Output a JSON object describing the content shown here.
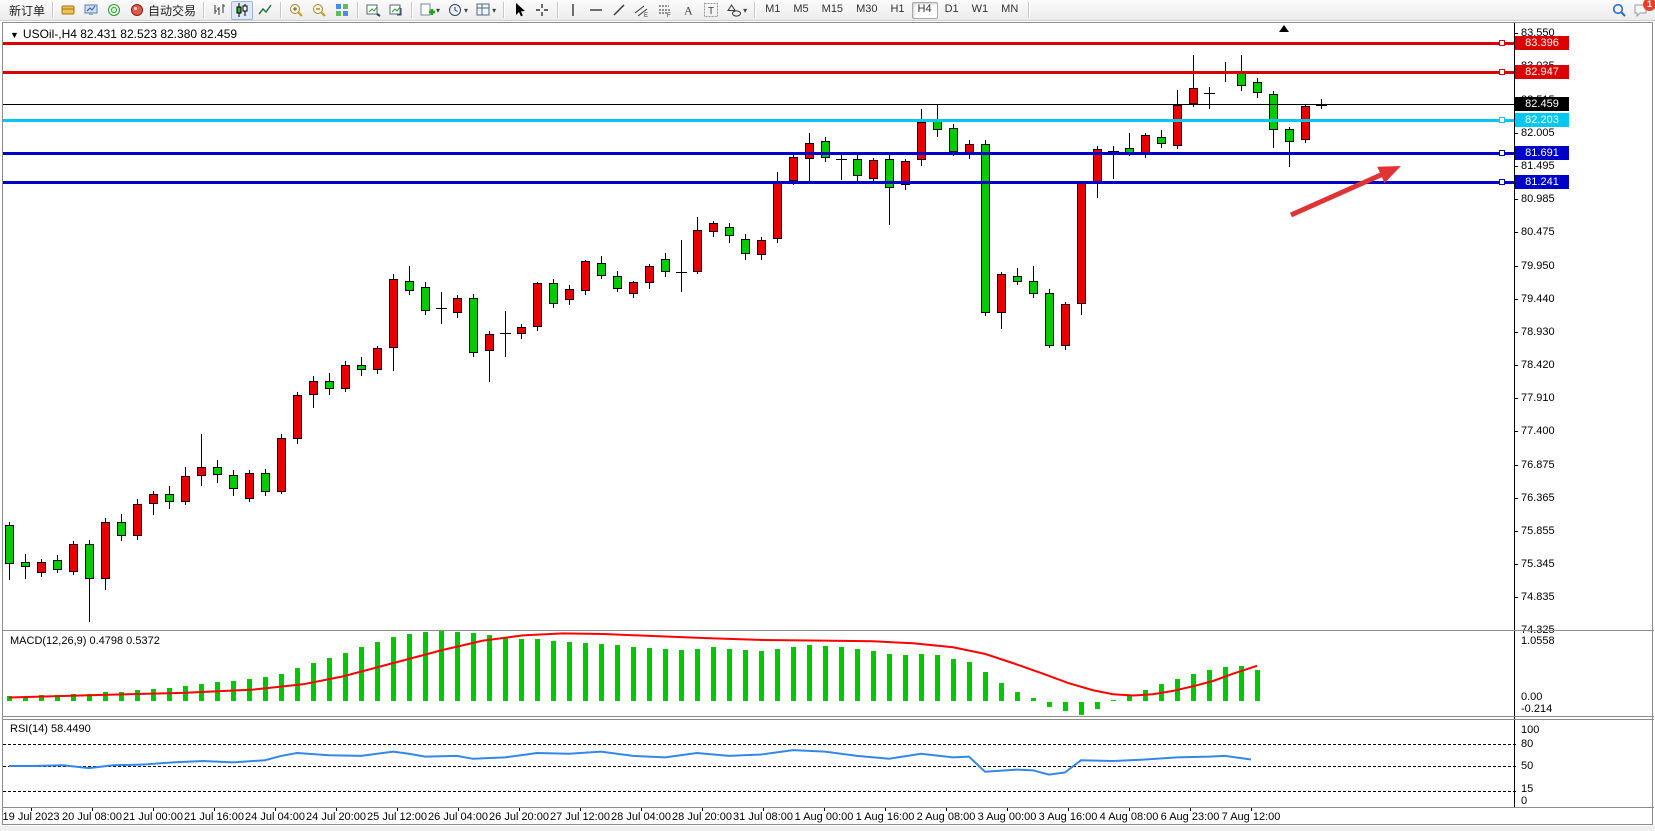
{
  "toolbar": {
    "new_order_label": "新订单",
    "auto_trading_label": "自动交易",
    "timeframes": [
      "M1",
      "M5",
      "M15",
      "M30",
      "H1",
      "H4",
      "D1",
      "W1",
      "MN"
    ],
    "active_timeframe": "H4",
    "notification_count": "1",
    "icon_buttons": [
      "profiles",
      "market-watch",
      "data-window",
      "auto-trading",
      "chart-bars",
      "chart-candles",
      "chart-line",
      "zoom-in",
      "zoom-out",
      "tile-windows",
      "arrange-auto",
      "arrange-cascade",
      "new-chart",
      "clock",
      "template",
      "cursor",
      "crosshair",
      "vline",
      "hline",
      "tline",
      "channel",
      "fibo",
      "text-a",
      "text-t",
      "shapes",
      "search",
      "chat"
    ]
  },
  "chart": {
    "title": "USOil-,H4  82.431 82.523 82.380 82.459",
    "current_price": "82.459",
    "colors": {
      "up_candle": "#e60000",
      "down_candle": "#00cc00",
      "red_line": "#dd0000",
      "cyan_line": "#00c8f0",
      "blue_line": "#0000c8",
      "black_line": "#000000",
      "macd_histogram": "#00c800",
      "macd_signal": "#ff0000",
      "rsi_line": "#3388e6",
      "arrow": "#e03434"
    },
    "hlines": [
      {
        "price": 83.396,
        "label": "83.396",
        "color": "#dd0000",
        "thick": 3
      },
      {
        "price": 82.947,
        "label": "82.947",
        "color": "#dd0000",
        "thick": 3
      },
      {
        "price": 82.459,
        "label": "82.459",
        "color": "#000000",
        "thick": 1
      },
      {
        "price": 82.203,
        "label": "82.203",
        "color": "#00c8f0",
        "thick": 3
      },
      {
        "price": 81.691,
        "label": "81.691",
        "color": "#0000c8",
        "thick": 3
      },
      {
        "price": 81.241,
        "label": "81.241",
        "color": "#0000c8",
        "thick": 3
      }
    ],
    "y_ticks": [
      "83.550",
      "83.035",
      "82.515",
      "82.005",
      "81.495",
      "80.985",
      "80.475",
      "79.950",
      "79.440",
      "78.930",
      "78.420",
      "77.910",
      "77.400",
      "76.875",
      "76.365",
      "75.855",
      "75.345",
      "74.835",
      "74.325"
    ]
  },
  "chart_data": {
    "type": "candlestick",
    "symbol": "USOil-",
    "period": "H4",
    "ohlc_current": {
      "open": 82.431,
      "high": 82.523,
      "low": 82.38,
      "close": 82.459
    },
    "ylim": [
      74.325,
      83.55
    ],
    "candles": [
      [
        75.95,
        76.0,
        75.1,
        75.35
      ],
      [
        75.38,
        75.5,
        75.12,
        75.3
      ],
      [
        75.2,
        75.42,
        75.15,
        75.38
      ],
      [
        75.4,
        75.48,
        75.2,
        75.26
      ],
      [
        75.22,
        75.7,
        75.18,
        75.66
      ],
      [
        75.66,
        75.72,
        74.45,
        75.12
      ],
      [
        75.12,
        76.05,
        74.95,
        76.0
      ],
      [
        76.0,
        76.12,
        75.7,
        75.78
      ],
      [
        75.78,
        76.35,
        75.72,
        76.28
      ],
      [
        76.28,
        76.48,
        76.1,
        76.42
      ],
      [
        76.42,
        76.55,
        76.2,
        76.3
      ],
      [
        76.3,
        76.85,
        76.25,
        76.7
      ],
      [
        76.7,
        77.35,
        76.55,
        76.85
      ],
      [
        76.85,
        76.95,
        76.6,
        76.72
      ],
      [
        76.72,
        76.8,
        76.4,
        76.5
      ],
      [
        76.35,
        76.8,
        76.3,
        76.75
      ],
      [
        76.75,
        76.82,
        76.4,
        76.46
      ],
      [
        76.46,
        77.35,
        76.42,
        77.3
      ],
      [
        77.28,
        78.0,
        77.2,
        77.95
      ],
      [
        77.95,
        78.25,
        77.75,
        78.18
      ],
      [
        78.18,
        78.3,
        77.95,
        78.05
      ],
      [
        78.05,
        78.48,
        78.0,
        78.42
      ],
      [
        78.42,
        78.55,
        78.25,
        78.35
      ],
      [
        78.35,
        78.72,
        78.28,
        78.69
      ],
      [
        78.69,
        79.82,
        78.33,
        79.75
      ],
      [
        79.72,
        79.95,
        79.5,
        79.57
      ],
      [
        79.62,
        79.7,
        79.2,
        79.26
      ],
      [
        79.29,
        79.55,
        79.05,
        79.3
      ],
      [
        79.23,
        79.5,
        79.15,
        79.46
      ],
      [
        79.46,
        79.52,
        78.55,
        78.61
      ],
      [
        78.64,
        78.95,
        78.15,
        78.9
      ],
      [
        78.92,
        79.25,
        78.55,
        78.9
      ],
      [
        78.9,
        79.05,
        78.82,
        79.0
      ],
      [
        79.0,
        79.7,
        78.95,
        79.68
      ],
      [
        79.68,
        79.75,
        79.3,
        79.37
      ],
      [
        79.42,
        79.65,
        79.35,
        79.6
      ],
      [
        79.57,
        80.05,
        79.5,
        80.03
      ],
      [
        79.99,
        80.1,
        79.75,
        79.8
      ],
      [
        79.8,
        79.88,
        79.55,
        79.6
      ],
      [
        79.52,
        79.72,
        79.45,
        79.7
      ],
      [
        79.68,
        79.98,
        79.6,
        79.95
      ],
      [
        80.06,
        80.15,
        79.78,
        79.85
      ],
      [
        79.86,
        80.35,
        79.55,
        79.86
      ],
      [
        79.86,
        80.7,
        79.82,
        80.5
      ],
      [
        80.47,
        80.65,
        80.4,
        80.62
      ],
      [
        80.55,
        80.62,
        80.3,
        80.42
      ],
      [
        80.37,
        80.45,
        80.05,
        80.14
      ],
      [
        80.12,
        80.4,
        80.05,
        80.35
      ],
      [
        80.37,
        81.4,
        80.3,
        81.26
      ],
      [
        81.27,
        81.7,
        81.2,
        81.63
      ],
      [
        81.61,
        82.0,
        81.25,
        81.85
      ],
      [
        81.88,
        81.95,
        81.55,
        81.62
      ],
      [
        81.62,
        81.7,
        81.28,
        81.6
      ],
      [
        81.6,
        81.68,
        81.25,
        81.34
      ],
      [
        81.3,
        81.62,
        81.22,
        81.58
      ],
      [
        81.61,
        81.68,
        80.58,
        81.15
      ],
      [
        81.2,
        81.6,
        81.12,
        81.57
      ],
      [
        81.58,
        82.38,
        81.5,
        82.17
      ],
      [
        82.2,
        82.45,
        81.95,
        82.05
      ],
      [
        82.08,
        82.15,
        81.65,
        81.71
      ],
      [
        81.67,
        81.9,
        81.6,
        81.84
      ],
      [
        81.84,
        81.9,
        79.18,
        79.23
      ],
      [
        79.23,
        79.85,
        78.98,
        79.83
      ],
      [
        79.8,
        79.92,
        79.65,
        79.7
      ],
      [
        79.72,
        79.95,
        79.45,
        79.52
      ],
      [
        79.54,
        79.6,
        78.68,
        78.72
      ],
      [
        78.71,
        79.4,
        78.65,
        79.36
      ],
      [
        79.36,
        81.27,
        79.2,
        81.23
      ],
      [
        81.23,
        81.8,
        81.0,
        81.76
      ],
      [
        81.7,
        81.8,
        81.3,
        81.74
      ],
      [
        81.78,
        82.0,
        81.65,
        81.69
      ],
      [
        81.68,
        82.0,
        81.62,
        81.97
      ],
      [
        81.94,
        82.05,
        81.78,
        81.84
      ],
      [
        81.8,
        82.67,
        81.76,
        82.43
      ],
      [
        82.46,
        83.21,
        82.4,
        82.7
      ],
      [
        82.63,
        82.72,
        82.38,
        82.62
      ],
      [
        82.95,
        83.1,
        82.8,
        82.97
      ],
      [
        82.95,
        83.21,
        82.65,
        82.73
      ],
      [
        82.8,
        82.85,
        82.55,
        82.62
      ],
      [
        82.6,
        82.65,
        81.77,
        82.05
      ],
      [
        82.06,
        82.1,
        81.48,
        81.87
      ],
      [
        81.9,
        82.45,
        81.85,
        82.42
      ],
      [
        82.431,
        82.523,
        82.38,
        82.459
      ]
    ]
  },
  "macd": {
    "label": "MACD(12,26,9) 0.4798 0.5372",
    "main_value": "0.4798",
    "signal_value": "0.5372",
    "scale": {
      "max": "1.0558",
      "zero": "0.00",
      "min": "-0.214"
    },
    "histogram": [
      0.08,
      0.09,
      0.1,
      0.1,
      0.11,
      0.12,
      0.14,
      0.15,
      0.17,
      0.19,
      0.21,
      0.24,
      0.27,
      0.29,
      0.31,
      0.34,
      0.37,
      0.42,
      0.5,
      0.58,
      0.66,
      0.74,
      0.82,
      0.9,
      0.97,
      1.02,
      1.05,
      1.06,
      1.05,
      1.03,
      1.0,
      0.97,
      0.95,
      0.94,
      0.92,
      0.9,
      0.89,
      0.87,
      0.85,
      0.83,
      0.81,
      0.8,
      0.78,
      0.8,
      0.82,
      0.8,
      0.78,
      0.77,
      0.8,
      0.83,
      0.85,
      0.84,
      0.82,
      0.79,
      0.76,
      0.72,
      0.7,
      0.72,
      0.7,
      0.65,
      0.6,
      0.45,
      0.28,
      0.15,
      0.05,
      -0.08,
      -0.15,
      -0.21,
      -0.12,
      0.02,
      0.1,
      0.18,
      0.26,
      0.34,
      0.42,
      0.48,
      0.52,
      0.53,
      0.48
    ],
    "signal_points": [
      [
        6,
        0.06
      ],
      [
        100,
        0.1
      ],
      [
        180,
        0.13
      ],
      [
        250,
        0.18
      ],
      [
        300,
        0.26
      ],
      [
        340,
        0.38
      ],
      [
        390,
        0.58
      ],
      [
        440,
        0.78
      ],
      [
        480,
        0.92
      ],
      [
        520,
        1.0
      ],
      [
        560,
        1.03
      ],
      [
        600,
        1.02
      ],
      [
        650,
        0.99
      ],
      [
        700,
        0.96
      ],
      [
        760,
        0.93
      ],
      [
        820,
        0.92
      ],
      [
        870,
        0.91
      ],
      [
        910,
        0.88
      ],
      [
        950,
        0.82
      ],
      [
        982,
        0.72
      ],
      [
        1010,
        0.58
      ],
      [
        1040,
        0.42
      ],
      [
        1065,
        0.28
      ],
      [
        1090,
        0.17
      ],
      [
        1110,
        0.11
      ],
      [
        1130,
        0.09
      ],
      [
        1150,
        0.11
      ],
      [
        1170,
        0.16
      ],
      [
        1190,
        0.23
      ],
      [
        1210,
        0.31
      ],
      [
        1230,
        0.42
      ],
      [
        1254,
        0.54
      ]
    ]
  },
  "rsi": {
    "label": "RSI(14) 58.4490",
    "value": "58.4490",
    "scale": [
      "100",
      "80",
      "50",
      "15",
      "0"
    ],
    "levels": [
      80,
      50,
      15
    ],
    "points": [
      [
        6,
        50
      ],
      [
        30,
        50
      ],
      [
        60,
        51
      ],
      [
        86,
        47
      ],
      [
        110,
        51
      ],
      [
        140,
        52
      ],
      [
        170,
        55
      ],
      [
        200,
        57
      ],
      [
        230,
        55
      ],
      [
        262,
        58
      ],
      [
        278,
        64
      ],
      [
        294,
        68
      ],
      [
        326,
        65
      ],
      [
        358,
        64
      ],
      [
        390,
        70
      ],
      [
        406,
        67
      ],
      [
        422,
        63
      ],
      [
        454,
        64
      ],
      [
        470,
        60
      ],
      [
        502,
        62
      ],
      [
        534,
        68
      ],
      [
        566,
        67
      ],
      [
        598,
        70
      ],
      [
        630,
        64
      ],
      [
        662,
        62
      ],
      [
        694,
        68
      ],
      [
        726,
        64
      ],
      [
        758,
        66
      ],
      [
        790,
        72
      ],
      [
        822,
        70
      ],
      [
        854,
        64
      ],
      [
        886,
        60
      ],
      [
        918,
        67
      ],
      [
        950,
        62
      ],
      [
        966,
        63
      ],
      [
        982,
        42
      ],
      [
        1014,
        45
      ],
      [
        1030,
        44
      ],
      [
        1046,
        38
      ],
      [
        1062,
        41
      ],
      [
        1078,
        58
      ],
      [
        1110,
        57
      ],
      [
        1142,
        59
      ],
      [
        1174,
        62
      ],
      [
        1206,
        63
      ],
      [
        1222,
        64
      ],
      [
        1238,
        61
      ],
      [
        1248,
        59
      ]
    ]
  },
  "time_axis": {
    "labels": [
      "19 Jul 2023",
      "20 Jul 08:00",
      "21 Jul 00:00",
      "21 Jul 16:00",
      "24 Jul 04:00",
      "24 Jul 20:00",
      "25 Jul 12:00",
      "26 Jul 04:00",
      "26 Jul 20:00",
      "27 Jul 12:00",
      "28 Jul 04:00",
      "28 Jul 20:00",
      "31 Jul 08:00",
      "1 Aug 00:00",
      "1 Aug 16:00",
      "2 Aug 08:00",
      "3 Aug 00:00",
      "3 Aug 16:00",
      "4 Aug 08:00",
      "6 Aug 23:00",
      "7 Aug 12:00"
    ]
  },
  "annotation_arrow": {
    "color": "#e03434",
    "from": [
      1288,
      192
    ],
    "to": [
      1398,
      143
    ]
  }
}
